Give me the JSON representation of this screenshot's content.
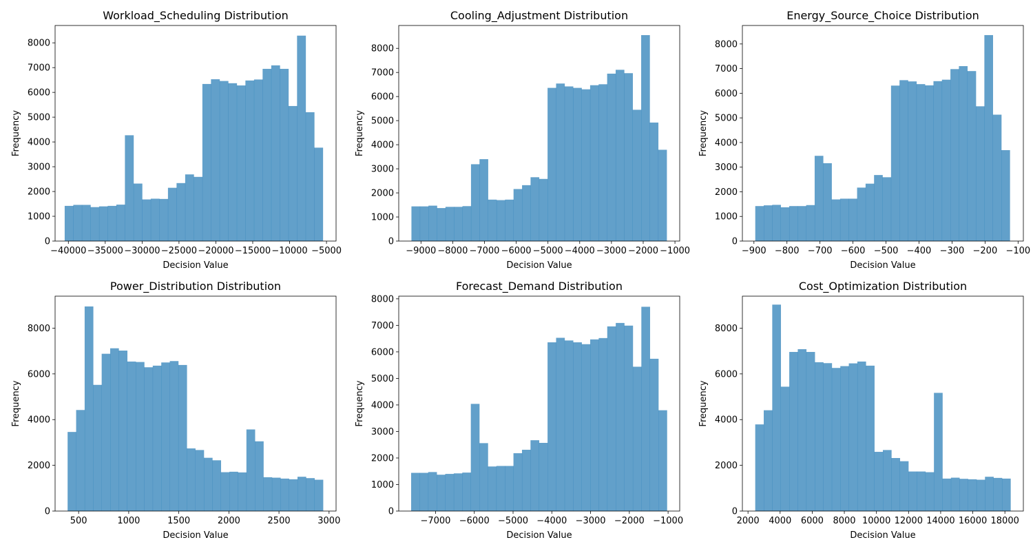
{
  "figure": {
    "background": "#ffffff",
    "bar_color": "#1f77b4",
    "bar_opacity": 0.7
  },
  "chart_data": [
    {
      "type": "bar",
      "title": "Workload_Scheduling Distribution",
      "xlabel": "Decision Value",
      "ylabel": "Frequency",
      "xlim": [
        -41800,
        -3700
      ],
      "ylim": [
        0,
        8700
      ],
      "xticks": [
        -40000,
        -35000,
        -30000,
        -25000,
        -20000,
        -15000,
        -10000,
        -5000
      ],
      "yticks": [
        0,
        1000,
        2000,
        3000,
        4000,
        5000,
        6000,
        7000,
        8000
      ],
      "bin_start": -40500,
      "bin_width": 1167,
      "values": [
        1420,
        1460,
        1460,
        1370,
        1400,
        1420,
        1470,
        4270,
        2320,
        1680,
        1710,
        1700,
        2150,
        2340,
        2690,
        2590,
        6340,
        6530,
        6460,
        6370,
        6280,
        6480,
        6520,
        6950,
        7090,
        6950,
        5450,
        8290,
        5200,
        3770
      ]
    },
    {
      "type": "bar",
      "title": "Cooling_Adjustment Distribution",
      "xlabel": "Decision Value",
      "ylabel": "Frequency",
      "xlim": [
        -9700,
        -850
      ],
      "ylim": [
        0,
        8950
      ],
      "xticks": [
        -9000,
        -8000,
        -7000,
        -6000,
        -5000,
        -4000,
        -3000,
        -2000,
        -1000
      ],
      "yticks": [
        0,
        1000,
        2000,
        3000,
        4000,
        5000,
        6000,
        7000,
        8000
      ],
      "bin_start": -9300,
      "bin_width": 268,
      "values": [
        1440,
        1440,
        1470,
        1370,
        1420,
        1420,
        1450,
        3190,
        3400,
        1720,
        1700,
        1720,
        2160,
        2320,
        2650,
        2580,
        6360,
        6540,
        6420,
        6360,
        6300,
        6470,
        6510,
        6950,
        7110,
        6970,
        5450,
        8550,
        4920,
        3790
      ]
    },
    {
      "type": "bar",
      "title": "Energy_Source_Choice Distribution",
      "xlabel": "Decision Value",
      "ylabel": "Frequency",
      "xlim": [
        -935,
        -84
      ],
      "ylim": [
        0,
        8750
      ],
      "xticks": [
        -900,
        -800,
        -700,
        -600,
        -500,
        -400,
        -300,
        -200,
        -100
      ],
      "yticks": [
        0,
        1000,
        2000,
        3000,
        4000,
        5000,
        6000,
        7000,
        8000
      ],
      "bin_start": -896,
      "bin_width": 25.7,
      "values": [
        1420,
        1450,
        1470,
        1370,
        1420,
        1420,
        1460,
        3460,
        3160,
        1690,
        1720,
        1720,
        2170,
        2330,
        2680,
        2590,
        6310,
        6530,
        6480,
        6370,
        6320,
        6490,
        6550,
        6980,
        7100,
        6900,
        5470,
        8360,
        5130,
        3690
      ]
    },
    {
      "type": "bar",
      "title": "Power_Distribution Distribution",
      "xlabel": "Decision Value",
      "ylabel": "Frequency",
      "xlim": [
        265,
        3070
      ],
      "ylim": [
        0,
        9400
      ],
      "xticks": [
        500,
        1000,
        1500,
        2000,
        2500,
        3000
      ],
      "yticks": [
        0,
        2000,
        4000,
        6000,
        8000
      ],
      "bin_start": 390,
      "bin_width": 85,
      "values": [
        3460,
        4420,
        8950,
        5520,
        6880,
        7120,
        7020,
        6540,
        6520,
        6290,
        6360,
        6500,
        6560,
        6390,
        2740,
        2670,
        2330,
        2220,
        1700,
        1720,
        1690,
        3570,
        3050,
        1480,
        1460,
        1420,
        1390,
        1500,
        1440,
        1370
      ]
    },
    {
      "type": "bar",
      "title": "Forecast_Demand Distribution",
      "xlabel": "Decision Value",
      "ylabel": "Frequency",
      "xlim": [
        -7950,
        -700
      ],
      "ylim": [
        0,
        8100
      ],
      "xticks": [
        -7000,
        -6000,
        -5000,
        -4000,
        -3000,
        -2000,
        -1000
      ],
      "yticks": [
        0,
        1000,
        2000,
        3000,
        4000,
        5000,
        6000,
        7000,
        8000
      ],
      "bin_start": -7630,
      "bin_width": 220,
      "values": [
        1440,
        1440,
        1470,
        1370,
        1400,
        1420,
        1450,
        4040,
        2560,
        1680,
        1700,
        1700,
        2180,
        2310,
        2670,
        2570,
        6360,
        6530,
        6430,
        6360,
        6290,
        6470,
        6520,
        6960,
        7090,
        6990,
        5440,
        7700,
        5740,
        3800
      ]
    },
    {
      "type": "bar",
      "title": "Cost_Optimization Distribution",
      "xlabel": "Decision Value",
      "ylabel": "Frequency",
      "xlim": [
        1650,
        19150
      ],
      "ylim": [
        0,
        9400
      ],
      "xticks": [
        2000,
        4000,
        6000,
        8000,
        10000,
        12000,
        14000,
        16000,
        18000
      ],
      "yticks": [
        0,
        2000,
        4000,
        6000,
        8000
      ],
      "bin_start": 2450,
      "bin_width": 530,
      "values": [
        3790,
        4410,
        9030,
        5440,
        6960,
        7080,
        6960,
        6510,
        6470,
        6260,
        6340,
        6460,
        6540,
        6360,
        2590,
        2670,
        2320,
        2180,
        1730,
        1730,
        1700,
        5170,
        1420,
        1460,
        1410,
        1390,
        1370,
        1500,
        1450,
        1420
      ]
    }
  ]
}
